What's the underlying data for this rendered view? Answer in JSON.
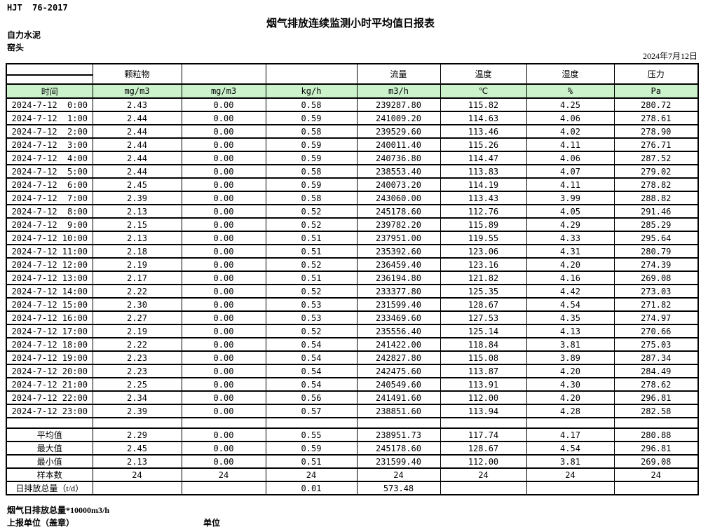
{
  "page": {
    "standard_code": "HJT  76-2017",
    "title": "烟气排放连续监测小时平均值日报表",
    "company": "自力水泥",
    "station": "窑头",
    "date": "2024年7月12日"
  },
  "table": {
    "group_headers": [
      "",
      "颗粒物",
      "",
      "",
      "流量",
      "温度",
      "湿度",
      "压力"
    ],
    "unit_headers": [
      "时间",
      "mg/m3",
      "mg/m3",
      "kg/h",
      "m3/h",
      "℃",
      "%",
      "Pa"
    ],
    "hourly_rows": [
      [
        "2024-7-12  0:00",
        "2.43",
        "0.00",
        "0.58",
        "239287.80",
        "115.82",
        "4.25",
        "280.72"
      ],
      [
        "2024-7-12  1:00",
        "2.44",
        "0.00",
        "0.59",
        "241009.20",
        "114.63",
        "4.06",
        "278.61"
      ],
      [
        "2024-7-12  2:00",
        "2.44",
        "0.00",
        "0.58",
        "239529.60",
        "113.46",
        "4.02",
        "278.90"
      ],
      [
        "2024-7-12  3:00",
        "2.44",
        "0.00",
        "0.59",
        "240011.40",
        "115.26",
        "4.11",
        "276.71"
      ],
      [
        "2024-7-12  4:00",
        "2.44",
        "0.00",
        "0.59",
        "240736.80",
        "114.47",
        "4.06",
        "287.52"
      ],
      [
        "2024-7-12  5:00",
        "2.44",
        "0.00",
        "0.58",
        "238553.40",
        "113.83",
        "4.07",
        "279.02"
      ],
      [
        "2024-7-12  6:00",
        "2.45",
        "0.00",
        "0.59",
        "240073.20",
        "114.19",
        "4.11",
        "278.82"
      ],
      [
        "2024-7-12  7:00",
        "2.39",
        "0.00",
        "0.58",
        "243060.00",
        "113.43",
        "3.99",
        "288.82"
      ],
      [
        "2024-7-12  8:00",
        "2.13",
        "0.00",
        "0.52",
        "245178.60",
        "112.76",
        "4.05",
        "291.46"
      ],
      [
        "2024-7-12  9:00",
        "2.15",
        "0.00",
        "0.52",
        "239782.20",
        "115.89",
        "4.29",
        "285.29"
      ],
      [
        "2024-7-12 10:00",
        "2.13",
        "0.00",
        "0.51",
        "237951.00",
        "119.55",
        "4.33",
        "295.64"
      ],
      [
        "2024-7-12 11:00",
        "2.18",
        "0.00",
        "0.51",
        "235392.60",
        "123.06",
        "4.31",
        "280.79"
      ],
      [
        "2024-7-12 12:00",
        "2.19",
        "0.00",
        "0.52",
        "236459.40",
        "123.16",
        "4.20",
        "274.39"
      ],
      [
        "2024-7-12 13:00",
        "2.17",
        "0.00",
        "0.51",
        "236194.80",
        "121.82",
        "4.16",
        "269.08"
      ],
      [
        "2024-7-12 14:00",
        "2.22",
        "0.00",
        "0.52",
        "233377.80",
        "125.35",
        "4.42",
        "273.03"
      ],
      [
        "2024-7-12 15:00",
        "2.30",
        "0.00",
        "0.53",
        "231599.40",
        "128.67",
        "4.54",
        "271.82"
      ],
      [
        "2024-7-12 16:00",
        "2.27",
        "0.00",
        "0.53",
        "233469.60",
        "127.53",
        "4.35",
        "274.97"
      ],
      [
        "2024-7-12 17:00",
        "2.19",
        "0.00",
        "0.52",
        "235556.40",
        "125.14",
        "4.13",
        "270.66"
      ],
      [
        "2024-7-12 18:00",
        "2.22",
        "0.00",
        "0.54",
        "241422.00",
        "118.84",
        "3.81",
        "275.03"
      ],
      [
        "2024-7-12 19:00",
        "2.23",
        "0.00",
        "0.54",
        "242827.80",
        "115.08",
        "3.89",
        "287.34"
      ],
      [
        "2024-7-12 20:00",
        "2.23",
        "0.00",
        "0.54",
        "242475.60",
        "113.87",
        "4.20",
        "284.49"
      ],
      [
        "2024-7-12 21:00",
        "2.25",
        "0.00",
        "0.54",
        "240549.60",
        "113.91",
        "4.30",
        "278.62"
      ],
      [
        "2024-7-12 22:00",
        "2.34",
        "0.00",
        "0.56",
        "241491.60",
        "112.00",
        "4.20",
        "296.81"
      ],
      [
        "2024-7-12 23:00",
        "2.39",
        "0.00",
        "0.57",
        "238851.60",
        "113.94",
        "4.28",
        "282.58"
      ]
    ],
    "summary_rows": [
      {
        "label": "平均值",
        "values": [
          "2.29",
          "0.00",
          "0.55",
          "238951.73",
          "117.74",
          "4.17",
          "280.88"
        ]
      },
      {
        "label": "最大值",
        "values": [
          "2.45",
          "0.00",
          "0.59",
          "245178.60",
          "128.67",
          "4.54",
          "296.81"
        ]
      },
      {
        "label": "最小值",
        "values": [
          "2.13",
          "0.00",
          "0.51",
          "231599.40",
          "112.00",
          "3.81",
          "269.08"
        ]
      },
      {
        "label": "样本数",
        "values": [
          "24",
          "24",
          "24",
          "24",
          "24",
          "24",
          "24"
        ]
      },
      {
        "label": "日排放总量（t/d）",
        "values": [
          "",
          "",
          "0.01",
          "573.48",
          "",
          "",
          ""
        ]
      }
    ]
  },
  "footer": {
    "note": "烟气日排放总量*10000m3/h",
    "report_unit_label": "上报单位（盖章）",
    "unit_label": "单位"
  },
  "colors": {
    "header_green": "#ccf2cc",
    "border": "#000000"
  }
}
